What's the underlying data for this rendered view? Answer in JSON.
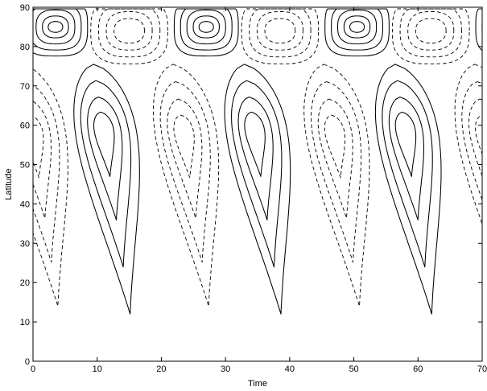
{
  "chart_data": {
    "type": "contour",
    "title": "",
    "xlabel": "Time",
    "ylabel": "Latitude",
    "xlim": [
      0,
      70
    ],
    "ylim": [
      0,
      90
    ],
    "xticks": [
      0,
      10,
      20,
      30,
      40,
      50,
      60,
      70
    ],
    "yticks": [
      0,
      10,
      20,
      30,
      40,
      50,
      60,
      70,
      80,
      90
    ],
    "grid": false,
    "line_color": "#000000",
    "line_styles": {
      "positive": "solid",
      "negative": "dashed"
    },
    "period": 23.5,
    "cells": [
      {
        "kind": "polar_positive",
        "t_center": 3.5,
        "lat_center": 85,
        "t_half": 4.5,
        "lat_half": 7
      },
      {
        "kind": "polar_negative",
        "t_center": 15,
        "lat_center": 84,
        "t_half": 5.5,
        "lat_half": 8
      },
      {
        "kind": "mid_positive",
        "t_center": 11,
        "lat_center": 58,
        "lat_south_tip": 12,
        "lag_per_degree": 0.09
      },
      {
        "kind": "mid_negative",
        "t_center": 0,
        "lat_center": 57,
        "lat_south_tip": 14,
        "lag_per_degree": 0.09
      }
    ]
  }
}
